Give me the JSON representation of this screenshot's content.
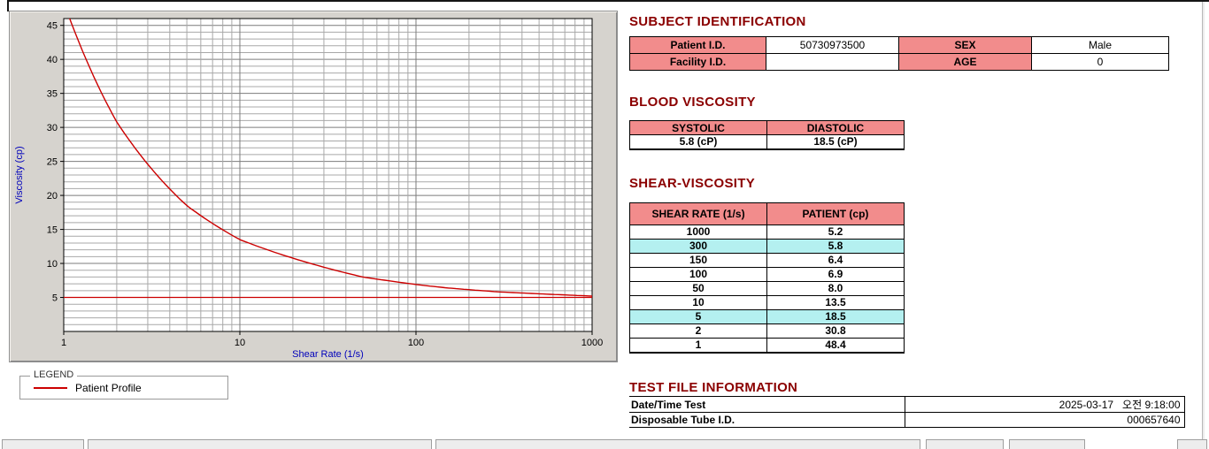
{
  "colors": {
    "heading": "#8B0000",
    "table_header_bg": "#F28C8C",
    "highlight_bg": "#B4F0F0",
    "curve": "#CC0000",
    "axis_label": "#0000BB"
  },
  "legend": {
    "title": "LEGEND",
    "series_label": "Patient Profile"
  },
  "subject": {
    "title": "SUBJECT IDENTIFICATION",
    "rows": [
      {
        "label": "Patient I.D.",
        "value": "50730973500",
        "label2": "SEX",
        "value2": "Male"
      },
      {
        "label": "Facility I.D.",
        "value": "",
        "label2": "AGE",
        "value2": "0"
      }
    ]
  },
  "blood_viscosity": {
    "title": "BLOOD VISCOSITY",
    "headers": [
      "SYSTOLIC",
      "DIASTOLIC"
    ],
    "values": [
      "5.8 (cP)",
      "18.5 (cP)"
    ]
  },
  "shear_viscosity": {
    "title": "SHEAR-VISCOSITY",
    "headers": [
      "SHEAR RATE (1/s)",
      "PATIENT (cp)"
    ],
    "rows": [
      {
        "shear_rate": "1000",
        "patient": "5.2",
        "highlight": false
      },
      {
        "shear_rate": "300",
        "patient": "5.8",
        "highlight": true
      },
      {
        "shear_rate": "150",
        "patient": "6.4",
        "highlight": false
      },
      {
        "shear_rate": "100",
        "patient": "6.9",
        "highlight": false
      },
      {
        "shear_rate": "50",
        "patient": "8.0",
        "highlight": false
      },
      {
        "shear_rate": "10",
        "patient": "13.5",
        "highlight": false
      },
      {
        "shear_rate": "5",
        "patient": "18.5",
        "highlight": true
      },
      {
        "shear_rate": "2",
        "patient": "30.8",
        "highlight": false
      },
      {
        "shear_rate": "1",
        "patient": "48.4",
        "highlight": false
      }
    ]
  },
  "test_file": {
    "title": "TEST FILE INFORMATION",
    "rows": [
      {
        "label": "Date/Time Test",
        "value": "2025-03-17   오전 9:18:00"
      },
      {
        "label": "Disposable Tube I.D.",
        "value": "000657640"
      }
    ]
  },
  "chart_data": {
    "type": "line",
    "title": "",
    "xlabel": "Shear Rate (1/s)",
    "ylabel": "Viscosity (cp)",
    "x_scale": "log",
    "xlim": [
      1,
      1000
    ],
    "ylim": [
      0,
      46
    ],
    "x_ticks": [
      1,
      10,
      100,
      1000
    ],
    "y_ticks": [
      5,
      10,
      15,
      20,
      25,
      30,
      35,
      40,
      45
    ],
    "grid": "log minor vertical; horizontal every 1 unit",
    "legend_position": "below-left group box",
    "series": [
      {
        "name": "Patient Profile",
        "color": "#CC0000",
        "points": [
          [
            1,
            48.4
          ],
          [
            2,
            30.8
          ],
          [
            5,
            18.5
          ],
          [
            10,
            13.5
          ],
          [
            50,
            8.0
          ],
          [
            100,
            6.9
          ],
          [
            150,
            6.4
          ],
          [
            300,
            5.8
          ],
          [
            1000,
            5.2
          ]
        ]
      }
    ],
    "baseline": {
      "value": 5,
      "color": "#CC0000"
    }
  }
}
